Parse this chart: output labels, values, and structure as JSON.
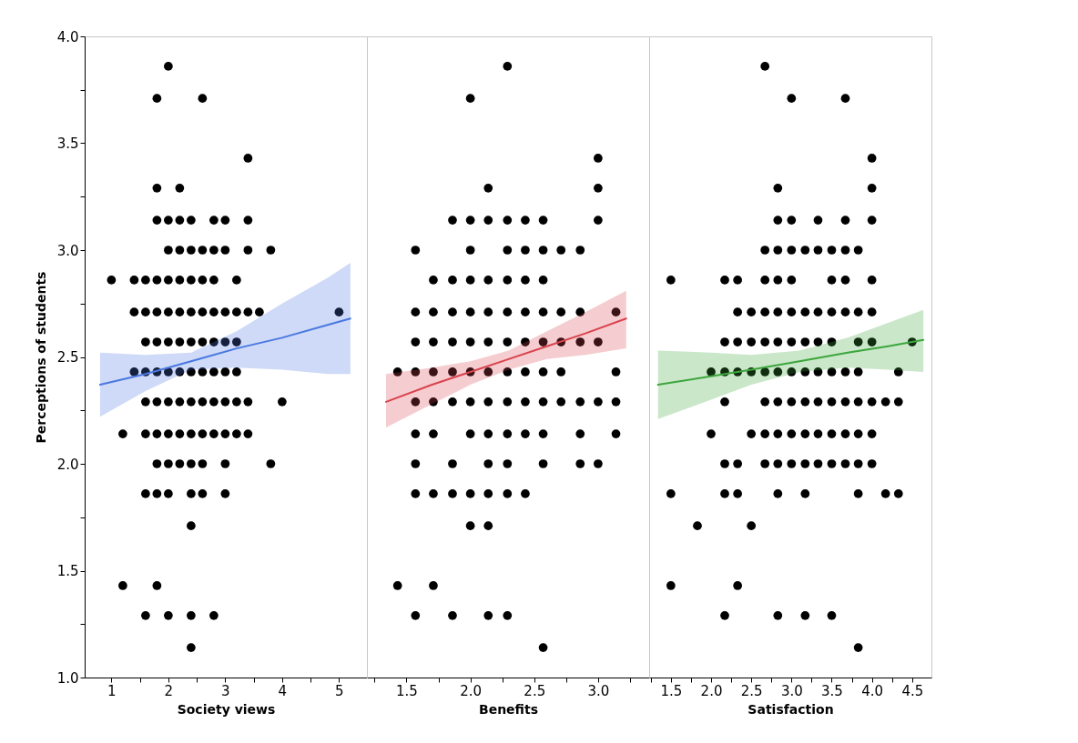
{
  "chart_data": [
    {
      "type": "scatter",
      "xlabel": "Society views",
      "ylabel": "Perceptions of students",
      "xlim": [
        0.53,
        5.49
      ],
      "xticks": [
        1,
        {
          "value": 1.5,
          "label": null
        },
        2,
        {
          "value": 2.5,
          "label": null
        },
        3,
        {
          "value": 3.5,
          "label": null
        },
        4,
        {
          "value": 4.5,
          "label": null
        },
        5
      ],
      "ylim": [
        1,
        4
      ],
      "yticks": [
        {
          "value": 1,
          "label": "1.0"
        },
        {
          "value": 1.25,
          "label": null
        },
        1.5,
        {
          "value": 1.75,
          "label": null
        },
        {
          "value": 2,
          "label": "2.0"
        },
        {
          "value": 2.25,
          "label": null
        },
        2.5,
        {
          "value": 2.75,
          "label": null
        },
        {
          "value": 3,
          "label": "3.0"
        },
        {
          "value": 3.25,
          "label": null
        },
        3.5,
        {
          "value": 3.75,
          "label": null
        },
        {
          "value": 4,
          "label": "4.0"
        }
      ],
      "series": [
        {
          "marker": "circle",
          "color": "#000000",
          "x": [
            2,
            1.8,
            2.6,
            3.4,
            1.8,
            2.2,
            1.8,
            2,
            2.2,
            2.4,
            2.8,
            3,
            3.4,
            2,
            2.2,
            2.4,
            2.6,
            2.8,
            3,
            3.4,
            3.8,
            1,
            1.4,
            1.6,
            1.8,
            2,
            2.2,
            2.4,
            2.6,
            2.8,
            3.2,
            1.4,
            1.6,
            1.8,
            2,
            2.2,
            2.4,
            2.6,
            2.8,
            3,
            3.2,
            3.4,
            3.6,
            5,
            1.6,
            1.8,
            2,
            2.2,
            2.4,
            2.6,
            2.8,
            3,
            3.2,
            1.4,
            1.6,
            1.8,
            2,
            2.2,
            2.4,
            2.6,
            2.8,
            3,
            3.2,
            1.6,
            1.8,
            2,
            2.2,
            2.4,
            2.6,
            2.8,
            3,
            3.2,
            3.4,
            4,
            1.2,
            1.6,
            1.8,
            2,
            2.2,
            2.4,
            2.6,
            2.8,
            3,
            3.2,
            3.4,
            1.8,
            2,
            2.2,
            2.4,
            2.6,
            3,
            3.8,
            1.6,
            1.8,
            2,
            2.4,
            2.6,
            3,
            2.4,
            1.2,
            1.8,
            1.6,
            2,
            2.4,
            2.8,
            2.4
          ],
          "values": [
            3.86,
            3.71,
            3.71,
            3.43,
            3.29,
            3.29,
            3.14,
            3.14,
            3.14,
            3.14,
            3.14,
            3.14,
            3.14,
            3,
            3,
            3,
            3,
            3,
            3,
            3,
            3,
            2.86,
            2.86,
            2.86,
            2.86,
            2.86,
            2.86,
            2.86,
            2.86,
            2.86,
            2.86,
            2.71,
            2.71,
            2.71,
            2.71,
            2.71,
            2.71,
            2.71,
            2.71,
            2.71,
            2.71,
            2.71,
            2.71,
            2.71,
            2.57,
            2.57,
            2.57,
            2.57,
            2.57,
            2.57,
            2.57,
            2.57,
            2.57,
            2.43,
            2.43,
            2.43,
            2.43,
            2.43,
            2.43,
            2.43,
            2.43,
            2.43,
            2.43,
            2.29,
            2.29,
            2.29,
            2.29,
            2.29,
            2.29,
            2.29,
            2.29,
            2.29,
            2.29,
            2.29,
            2.14,
            2.14,
            2.14,
            2.14,
            2.14,
            2.14,
            2.14,
            2.14,
            2.14,
            2.14,
            2.14,
            2,
            2,
            2,
            2,
            2,
            2,
            2,
            1.86,
            1.86,
            1.86,
            1.86,
            1.86,
            1.86,
            1.71,
            1.43,
            1.43,
            1.29,
            1.29,
            1.29,
            1.29,
            1.14
          ]
        },
        {
          "type": "line",
          "color": "#4a78e0",
          "x": [
            0.8,
            1.6,
            2.4,
            3.2,
            4.0,
            4.8,
            5.2
          ],
          "values": [
            2.37,
            2.42,
            2.48,
            2.54,
            2.59,
            2.65,
            2.68
          ],
          "lower": [
            2.22,
            2.34,
            2.44,
            2.45,
            2.44,
            2.42,
            2.42
          ],
          "upper": [
            2.52,
            2.51,
            2.52,
            2.62,
            2.75,
            2.87,
            2.94
          ]
        }
      ]
    },
    {
      "type": "scatter",
      "xlabel": "Benefits",
      "tick_labels": "x",
      "xlim": [
        1.19,
        3.4
      ],
      "xticks": [
        {
          "value": 1.25,
          "label": null
        },
        1.5,
        {
          "value": 1.75,
          "label": null
        },
        {
          "value": 2,
          "label": "2.0"
        },
        {
          "value": 2.25,
          "label": null
        },
        2.5,
        {
          "value": 2.75,
          "label": null
        },
        {
          "value": 3,
          "label": "3.0"
        },
        {
          "value": 3.25,
          "label": null
        }
      ],
      "ylim": [
        1,
        4
      ],
      "yticks": [
        1,
        1.5,
        2,
        2.5,
        3,
        3.5,
        4
      ],
      "series": [
        {
          "marker": "circle",
          "color": "#000000",
          "x": [
            2.29,
            2,
            3,
            2.14,
            3,
            1.86,
            2,
            2.14,
            2.29,
            2.43,
            2.57,
            3,
            1.57,
            2,
            2.29,
            2.43,
            2.57,
            2.71,
            2.86,
            1.71,
            1.86,
            2,
            2.14,
            2.29,
            2.43,
            2.57,
            1.57,
            1.71,
            1.86,
            2,
            2.14,
            2.29,
            2.43,
            2.57,
            2.71,
            2.86,
            3.14,
            1.57,
            1.71,
            1.86,
            2,
            2.14,
            2.29,
            2.43,
            2.57,
            2.71,
            2.86,
            3,
            1.43,
            1.57,
            1.71,
            1.86,
            2,
            2.14,
            2.29,
            2.43,
            2.57,
            2.71,
            3.14,
            1.57,
            1.71,
            1.86,
            2,
            2.14,
            2.29,
            2.43,
            2.57,
            2.71,
            2.86,
            3,
            3.14,
            1.57,
            1.71,
            2,
            2.14,
            2.29,
            2.43,
            2.57,
            2.86,
            3.14,
            1.57,
            1.86,
            2.14,
            2.29,
            2.57,
            2.86,
            3,
            1.57,
            1.71,
            1.86,
            2,
            2.14,
            2.29,
            2.43,
            2,
            2.14,
            1.43,
            1.71,
            1.57,
            1.86,
            2.14,
            2.29,
            2.57
          ],
          "values": [
            3.86,
            3.71,
            3.43,
            3.29,
            3.29,
            3.14,
            3.14,
            3.14,
            3.14,
            3.14,
            3.14,
            3.14,
            3,
            3,
            3,
            3,
            3,
            3,
            3,
            2.86,
            2.86,
            2.86,
            2.86,
            2.86,
            2.86,
            2.86,
            2.71,
            2.71,
            2.71,
            2.71,
            2.71,
            2.71,
            2.71,
            2.71,
            2.71,
            2.71,
            2.71,
            2.57,
            2.57,
            2.57,
            2.57,
            2.57,
            2.57,
            2.57,
            2.57,
            2.57,
            2.57,
            2.57,
            2.43,
            2.43,
            2.43,
            2.43,
            2.43,
            2.43,
            2.43,
            2.43,
            2.43,
            2.43,
            2.43,
            2.29,
            2.29,
            2.29,
            2.29,
            2.29,
            2.29,
            2.29,
            2.29,
            2.29,
            2.29,
            2.29,
            2.29,
            2.14,
            2.14,
            2.14,
            2.14,
            2.14,
            2.14,
            2.14,
            2.14,
            2.14,
            2,
            2,
            2,
            2,
            2,
            2,
            2,
            1.86,
            1.86,
            1.86,
            1.86,
            1.86,
            1.86,
            1.86,
            1.71,
            1.71,
            1.43,
            1.43,
            1.29,
            1.29,
            1.29,
            1.29,
            1.14
          ]
        },
        {
          "type": "line",
          "color": "#d9434e",
          "x": [
            1.34,
            1.7,
            2.0,
            2.3,
            2.6,
            2.9,
            3.22
          ],
          "values": [
            2.29,
            2.37,
            2.43,
            2.49,
            2.55,
            2.61,
            2.68
          ],
          "lower": [
            2.17,
            2.28,
            2.37,
            2.44,
            2.49,
            2.51,
            2.54
          ],
          "upper": [
            2.42,
            2.45,
            2.48,
            2.53,
            2.62,
            2.71,
            2.81
          ]
        }
      ]
    },
    {
      "type": "scatter",
      "xlabel": "Satisfaction",
      "tick_labels": "x",
      "xlim": [
        1.23,
        4.74
      ],
      "xticks": [
        {
          "value": 1.25,
          "label": null
        },
        1.5,
        {
          "value": 1.75,
          "label": null
        },
        {
          "value": 2,
          "label": "2.0"
        },
        {
          "value": 2.25,
          "label": null
        },
        2.5,
        {
          "value": 2.75,
          "label": null
        },
        {
          "value": 3,
          "label": "3.0"
        },
        {
          "value": 3.25,
          "label": null
        },
        3.5,
        {
          "value": 3.75,
          "label": null
        },
        {
          "value": 4,
          "label": "4.0"
        },
        {
          "value": 4.25,
          "label": null
        },
        4.5
      ],
      "ylim": [
        1,
        4
      ],
      "yticks": [
        1,
        1.5,
        2,
        2.5,
        3,
        3.5,
        4
      ],
      "series": [
        {
          "marker": "circle",
          "color": "#000000",
          "x": [
            2.67,
            3,
            3.67,
            4,
            2.83,
            4,
            2.83,
            3,
            3.33,
            3.67,
            4,
            2.67,
            2.83,
            3,
            3.17,
            3.33,
            3.5,
            3.67,
            3.83,
            1.5,
            2.17,
            2.33,
            2.67,
            2.83,
            3,
            3.5,
            3.67,
            4,
            2.33,
            2.5,
            2.67,
            2.83,
            3,
            3.17,
            3.33,
            3.5,
            3.67,
            3.83,
            4,
            2.17,
            2.33,
            2.5,
            2.67,
            2.83,
            3,
            3.17,
            3.33,
            3.5,
            3.83,
            4,
            4.5,
            2,
            2.17,
            2.33,
            2.5,
            2.67,
            2.83,
            3,
            3.17,
            3.33,
            3.5,
            3.67,
            3.83,
            4.33,
            2.17,
            2.67,
            2.83,
            3,
            3.17,
            3.33,
            3.5,
            3.67,
            3.83,
            4,
            4.17,
            4.33,
            2,
            2.5,
            2.67,
            2.83,
            3,
            3.17,
            3.33,
            3.5,
            3.67,
            3.83,
            4,
            2.17,
            2.33,
            2.67,
            2.83,
            3,
            3.17,
            3.33,
            3.5,
            3.67,
            3.83,
            4,
            1.5,
            2.17,
            2.33,
            2.83,
            3.17,
            3.83,
            4.17,
            4.33,
            1.83,
            2.5,
            1.5,
            2.33,
            2.17,
            2.83,
            3.17,
            3.5,
            3.83
          ],
          "values": [
            3.86,
            3.71,
            3.71,
            3.43,
            3.29,
            3.29,
            3.14,
            3.14,
            3.14,
            3.14,
            3.14,
            3,
            3,
            3,
            3,
            3,
            3,
            3,
            3,
            2.86,
            2.86,
            2.86,
            2.86,
            2.86,
            2.86,
            2.86,
            2.86,
            2.86,
            2.71,
            2.71,
            2.71,
            2.71,
            2.71,
            2.71,
            2.71,
            2.71,
            2.71,
            2.71,
            2.71,
            2.57,
            2.57,
            2.57,
            2.57,
            2.57,
            2.57,
            2.57,
            2.57,
            2.57,
            2.57,
            2.57,
            2.57,
            2.43,
            2.43,
            2.43,
            2.43,
            2.43,
            2.43,
            2.43,
            2.43,
            2.43,
            2.43,
            2.43,
            2.43,
            2.43,
            2.29,
            2.29,
            2.29,
            2.29,
            2.29,
            2.29,
            2.29,
            2.29,
            2.29,
            2.29,
            2.29,
            2.29,
            2.14,
            2.14,
            2.14,
            2.14,
            2.14,
            2.14,
            2.14,
            2.14,
            2.14,
            2.14,
            2.14,
            2,
            2,
            2,
            2,
            2,
            2,
            2,
            2,
            2,
            2,
            2,
            1.86,
            1.86,
            1.86,
            1.86,
            1.86,
            1.86,
            1.86,
            1.86,
            1.71,
            1.71,
            1.43,
            1.43,
            1.29,
            1.29,
            1.29,
            1.29,
            1.14
          ]
        },
        {
          "type": "line",
          "color": "#3ca63c",
          "x": [
            1.34,
            2.0,
            2.5,
            3.1,
            3.7,
            4.2,
            4.64
          ],
          "values": [
            2.37,
            2.41,
            2.44,
            2.48,
            2.52,
            2.55,
            2.58
          ],
          "lower": [
            2.21,
            2.3,
            2.37,
            2.43,
            2.45,
            2.44,
            2.43
          ],
          "upper": [
            2.53,
            2.52,
            2.51,
            2.53,
            2.59,
            2.66,
            2.72
          ]
        }
      ]
    }
  ]
}
